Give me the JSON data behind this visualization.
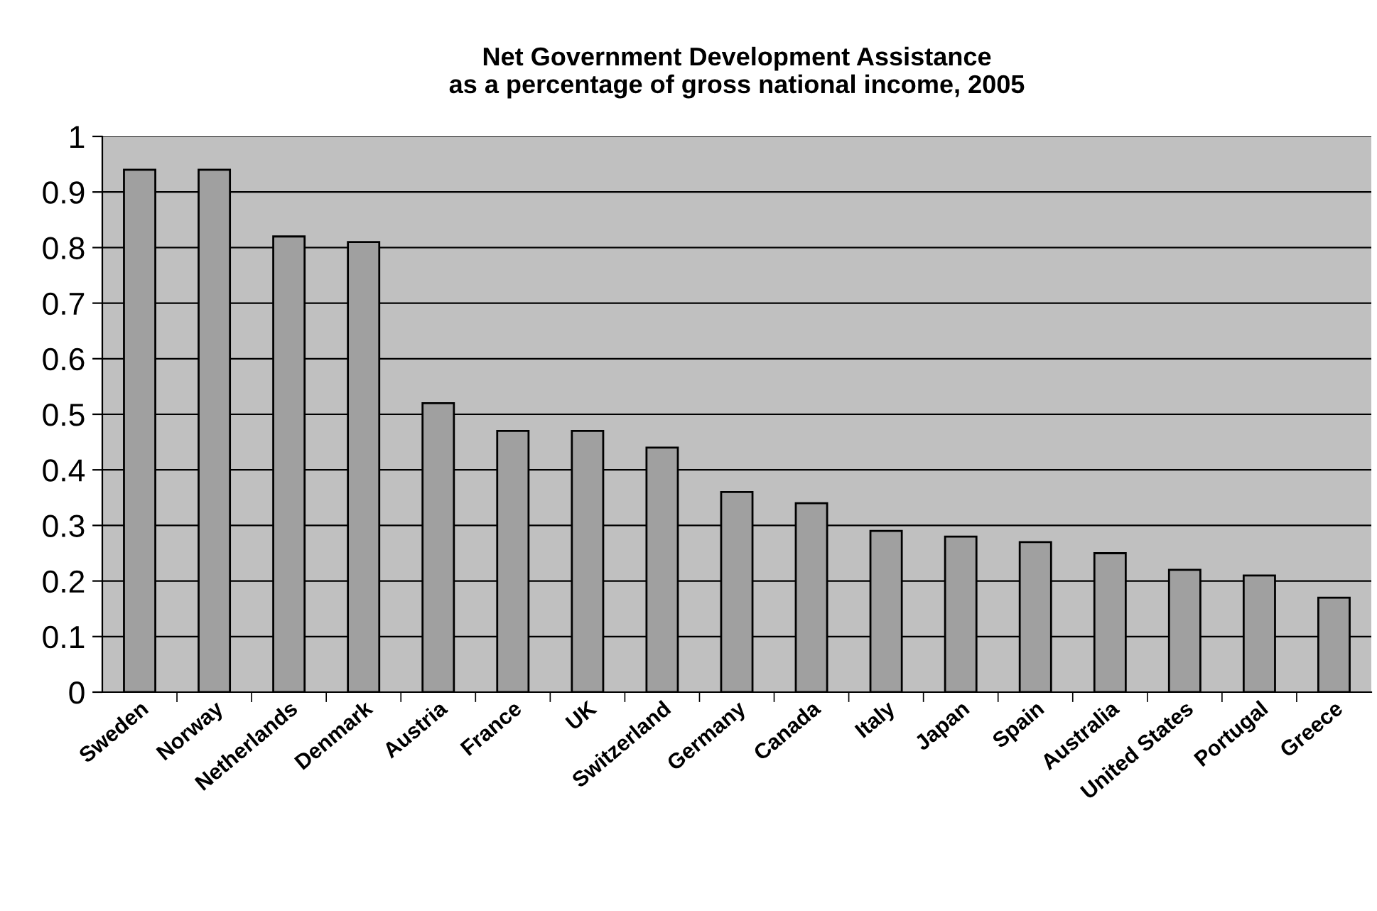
{
  "chart_data": {
    "type": "bar",
    "title": "Net Government Development Assistance\nas a percentage of gross national income, 2005",
    "categories": [
      "Sweden",
      "Norway",
      "Netherlands",
      "Denmark",
      "Austria",
      "France",
      "UK",
      "Switzerland",
      "Germany",
      "Canada",
      "Italy",
      "Japan",
      "Spain",
      "Australia",
      "United States",
      "Portugal",
      "Greece"
    ],
    "values": [
      0.94,
      0.94,
      0.82,
      0.81,
      0.52,
      0.47,
      0.47,
      0.44,
      0.36,
      0.34,
      0.29,
      0.28,
      0.27,
      0.25,
      0.22,
      0.21,
      0.17
    ],
    "color": "#a0a0a0",
    "ylim": [
      0,
      1
    ],
    "yticks": [
      0,
      {
        "value": 0.1,
        "label": "0.1"
      },
      {
        "value": 0.2,
        "label": "0.2"
      },
      {
        "value": 0.3,
        "label": "0.3"
      },
      {
        "value": 0.4,
        "label": "0.4"
      },
      {
        "value": 0.5,
        "label": "0.5"
      },
      {
        "value": 0.6,
        "label": "0.6"
      },
      {
        "value": 0.7,
        "label": "0.7"
      },
      {
        "value": 0.8,
        "label": "0.8"
      },
      {
        "value": 0.9,
        "label": "0.9"
      },
      1
    ],
    "grid": "y",
    "legend": false
  }
}
